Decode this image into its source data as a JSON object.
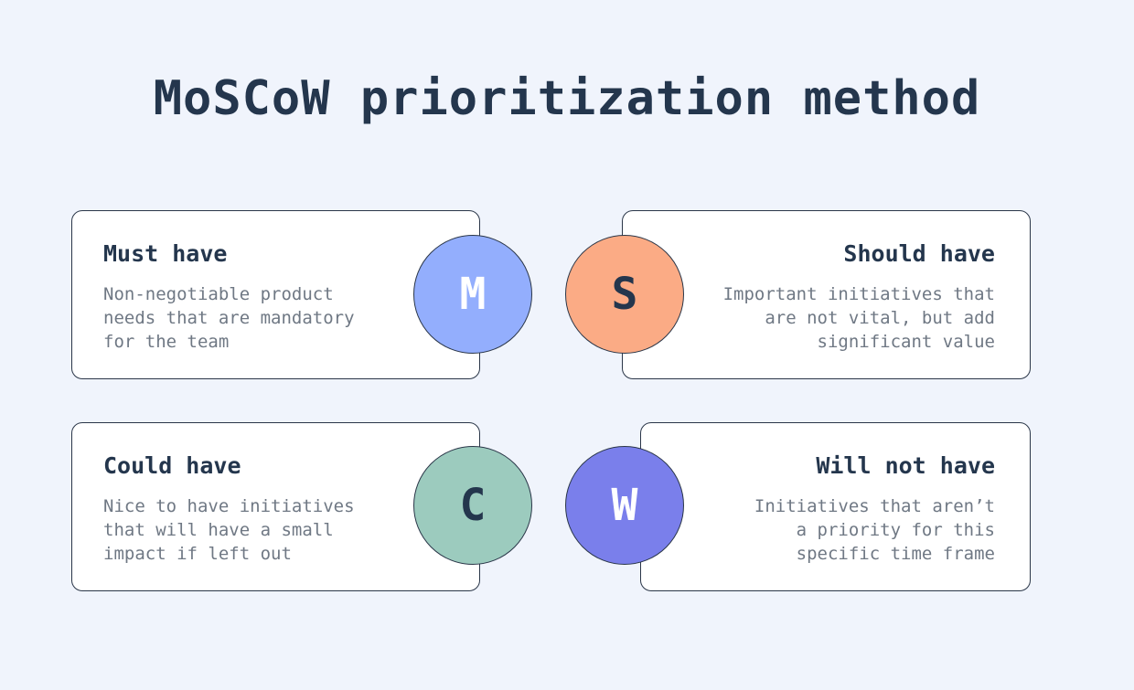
{
  "title": "MoSCoW prioritization method",
  "cards": {
    "must": {
      "letter": "M",
      "title": "Must have",
      "desc": "Non-negotiable product\nneeds that are mandatory\nfor the team",
      "circle_color": "#93aefd",
      "letter_color": "#ffffff"
    },
    "should": {
      "letter": "S",
      "title": "Should have",
      "desc": "Important initiatives that\nare not vital, but add\nsignificant value",
      "circle_color": "#fbab85",
      "letter_color": "#24364d"
    },
    "could": {
      "letter": "C",
      "title": "Could have",
      "desc": "Nice to have initiatives\nthat will have a small\nimpact if left out",
      "circle_color": "#9ccbbe",
      "letter_color": "#24364d"
    },
    "wont": {
      "letter": "W",
      "title": "Will not have",
      "desc": "Initiatives that aren’t\na priority for this\nspecific time frame",
      "circle_color": "#7a7feb",
      "letter_color": "#ffffff"
    }
  }
}
